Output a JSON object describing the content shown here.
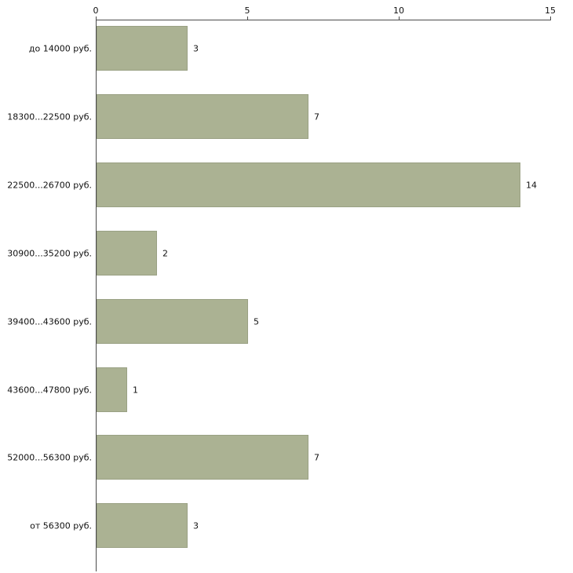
{
  "chart_data": {
    "type": "bar",
    "orientation": "horizontal",
    "title": "",
    "xlabel": "",
    "ylabel": "",
    "categories": [
      "до 14000 руб.",
      "18300...22500 руб.",
      "22500...26700 руб.",
      "30900...35200 руб.",
      "39400...43600 руб.",
      "43600...47800 руб.",
      "52000...56300 руб.",
      "от 56300 руб."
    ],
    "values": [
      3,
      7,
      14,
      2,
      5,
      1,
      7,
      3
    ],
    "value_labels": [
      "3",
      "7",
      "14",
      "2",
      "5",
      "1",
      "7",
      "3"
    ],
    "xlim": [
      0,
      15
    ],
    "x_ticks": [
      "0",
      "5",
      "10",
      "15"
    ],
    "x_tick_values": [
      0,
      5,
      10,
      15
    ],
    "axis_position": "top",
    "grid": false,
    "legend": false,
    "bar_color": "#abb293",
    "bar_border_color": "#9aa184",
    "axis_color": "#4a4a4a",
    "background_color": "#ffffff",
    "text_color": "#111111"
  }
}
